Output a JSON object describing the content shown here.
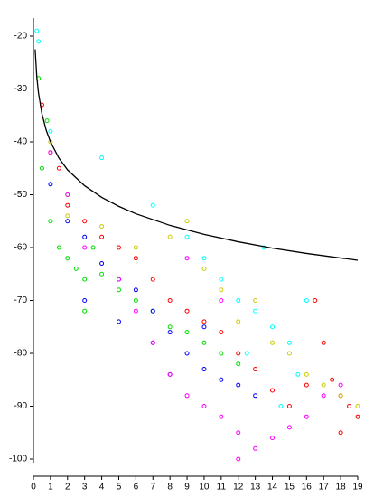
{
  "chart_data": {
    "type": "scatter",
    "xlim": [
      0,
      19
    ],
    "ylim": [
      -100,
      -20
    ],
    "xticks": [
      0,
      1,
      2,
      3,
      4,
      5,
      6,
      7,
      8,
      9,
      10,
      11,
      12,
      13,
      14,
      15,
      16,
      17,
      18,
      19
    ],
    "yticks": [
      -20,
      -30,
      -40,
      -50,
      -60,
      -70,
      -80,
      -90,
      -100
    ],
    "series": [
      {
        "color": "#ff0000",
        "x": [
          0.5,
          1,
          1.5,
          2,
          3,
          4,
          5,
          6,
          7,
          8,
          9,
          10,
          11,
          12,
          13,
          14,
          15,
          16,
          17,
          17.5,
          18,
          18.5,
          19,
          18,
          16.5
        ],
        "values": [
          -33,
          -42,
          -45,
          -52,
          -55,
          -58,
          -60,
          -62,
          -66,
          -70,
          -72,
          -74,
          -76,
          -80,
          -83,
          -87,
          -90,
          -86,
          -78,
          -85,
          -88,
          -90,
          -92,
          -95,
          -70
        ]
      },
      {
        "color": "#00dd00",
        "x": [
          0.3,
          0.8,
          1,
          1.5,
          2,
          2.5,
          3,
          3.5,
          4,
          5,
          6,
          7,
          8,
          9,
          10,
          11,
          12,
          0.5,
          2,
          3
        ],
        "values": [
          -28,
          -36,
          -55,
          -60,
          -62,
          -64,
          -66,
          -60,
          -65,
          -68,
          -70,
          -72,
          -75,
          -76,
          -78,
          -80,
          -82,
          -45,
          -50,
          -72
        ]
      },
      {
        "color": "#0000ff",
        "x": [
          1,
          2,
          3,
          4,
          5,
          6,
          7,
          8,
          9,
          10,
          11,
          12,
          13,
          3,
          5,
          7,
          8,
          10
        ],
        "values": [
          -48,
          -55,
          -58,
          -63,
          -66,
          -68,
          -72,
          -76,
          -80,
          -83,
          -85,
          -86,
          -88,
          -70,
          -74,
          -78,
          -84,
          -75
        ]
      },
      {
        "color": "#ff00ff",
        "x": [
          1,
          2,
          3,
          5,
          6,
          7,
          8,
          9,
          10,
          11,
          12,
          13,
          14,
          15,
          16,
          17,
          18,
          9,
          11,
          12
        ],
        "values": [
          -42,
          -50,
          -60,
          -66,
          -72,
          -78,
          -84,
          -88,
          -90,
          -92,
          -95,
          -98,
          -96,
          -94,
          -92,
          -88,
          -86,
          -62,
          -70,
          -100
        ]
      },
      {
        "color": "#00ffff",
        "x": [
          0.2,
          0.3,
          1,
          4,
          7,
          9,
          10,
          11,
          12,
          13,
          14,
          15,
          16,
          13.5,
          15.5,
          12.5,
          14.5
        ],
        "values": [
          -19,
          -21,
          -38,
          -43,
          -52,
          -58,
          -62,
          -66,
          -70,
          -72,
          -75,
          -78,
          -70,
          -60,
          -84,
          -80,
          -90
        ]
      },
      {
        "color": "#cccc00",
        "x": [
          1,
          2,
          4,
          6,
          8,
          9,
          10,
          11,
          12,
          14,
          15,
          16,
          17,
          18,
          19,
          13
        ],
        "values": [
          -40,
          -54,
          -56,
          -60,
          -58,
          -55,
          -64,
          -68,
          -74,
          -78,
          -80,
          -84,
          -86,
          -88,
          -90,
          -70
        ]
      },
      {
        "color": "#000000",
        "kind": "line",
        "x": [
          0.1,
          0.2,
          0.3,
          0.5,
          0.75,
          1,
          1.5,
          2,
          3,
          4,
          5,
          6,
          8,
          10,
          12,
          14,
          16,
          19
        ],
        "values": [
          -22.5,
          -27.8,
          -30.8,
          -34.7,
          -37.8,
          -40,
          -43.1,
          -45.3,
          -48.3,
          -50.5,
          -52.2,
          -53.6,
          -55.8,
          -57.5,
          -58.9,
          -60.1,
          -61.1,
          -62.4
        ]
      }
    ]
  }
}
